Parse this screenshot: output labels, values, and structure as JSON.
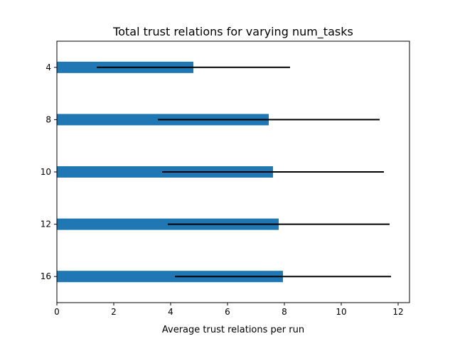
{
  "chart_data": {
    "type": "bar",
    "orientation": "horizontal",
    "title": "Total trust relations for varying num_tasks",
    "xlabel": "Average trust relations per run",
    "ylabel": "",
    "categories": [
      "4",
      "8",
      "10",
      "12",
      "16"
    ],
    "values": [
      4.8,
      7.45,
      7.6,
      7.8,
      7.95
    ],
    "error": [
      3.4,
      3.9,
      3.9,
      3.9,
      3.8
    ],
    "xlim": [
      0,
      12.4
    ],
    "xticks": [
      0,
      2,
      4,
      6,
      8,
      10,
      12
    ],
    "grid": false,
    "bar_color": "#1f77b4",
    "error_color": "#000000"
  }
}
